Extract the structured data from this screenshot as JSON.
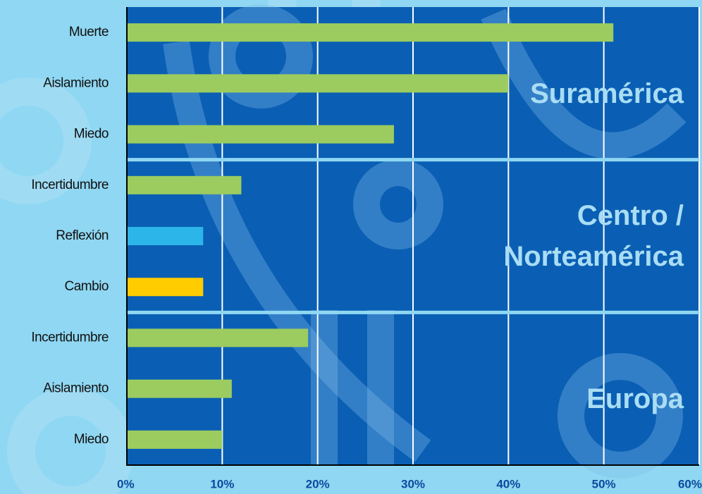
{
  "chart_data": {
    "type": "bar",
    "orientation": "horizontal",
    "groups": [
      {
        "name": "Suramérica",
        "categories": [
          "Muerte",
          "Aislamiento",
          "Miedo"
        ],
        "values": [
          51,
          40,
          28
        ],
        "colors": [
          "#9ccc5f",
          "#9ccc5f",
          "#9ccc5f"
        ]
      },
      {
        "name": "Centro / Norteamérica",
        "categories": [
          "Incertidumbre",
          "Reflexión",
          "Cambio"
        ],
        "values": [
          12,
          8,
          8
        ],
        "colors": [
          "#9ccc5f",
          "#2bb5e8",
          "#ffcc00"
        ]
      },
      {
        "name": "Europa",
        "categories": [
          "Incertidumbre",
          "Aislamiento",
          "Miedo"
        ],
        "values": [
          19,
          11,
          10
        ],
        "colors": [
          "#9ccc5f",
          "#9ccc5f",
          "#9ccc5f"
        ]
      }
    ],
    "xlim": [
      0,
      60
    ],
    "xticks": [
      {
        "value": 0,
        "label": "0%"
      },
      {
        "value": 10,
        "label": "10%"
      },
      {
        "value": 20,
        "label": "20%"
      },
      {
        "value": 30,
        "label": "30%"
      },
      {
        "value": 40,
        "label": "40%"
      },
      {
        "value": 50,
        "label": "50%"
      },
      {
        "value": 60,
        "label": "60%"
      }
    ],
    "grid": true
  }
}
